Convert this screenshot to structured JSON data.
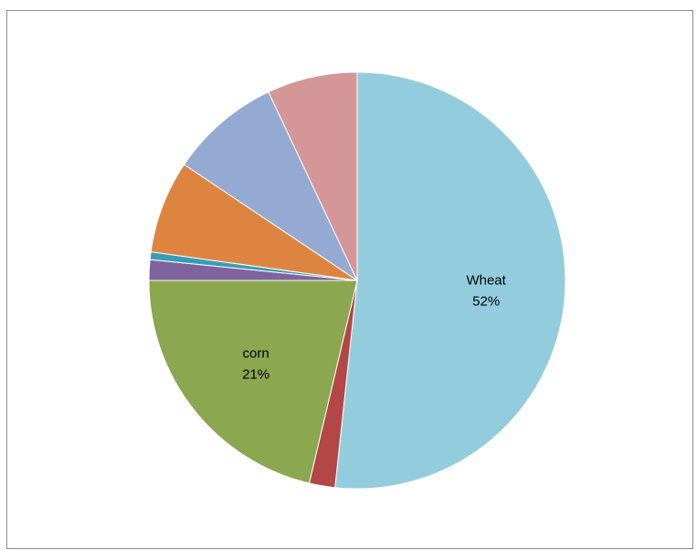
{
  "chart_data": {
    "type": "pie",
    "title": "",
    "start_angle_deg": 0,
    "direction": "clockwise",
    "slices": [
      {
        "label": "Wheat",
        "percent_label": "52%",
        "value": 51.7,
        "color": "#93CDDD",
        "show_label": true
      },
      {
        "label": "",
        "percent_label": "",
        "value": 2.0,
        "color": "#B24745",
        "show_label": false
      },
      {
        "label": "corn",
        "percent_label": "21%",
        "value": 21.3,
        "color": "#8BA74F",
        "show_label": true
      },
      {
        "label": "",
        "percent_label": "",
        "value": 1.6,
        "color": "#7E649E",
        "show_label": false
      },
      {
        "label": "",
        "percent_label": "",
        "value": 0.6,
        "color": "#3A9DB6",
        "show_label": false
      },
      {
        "label": "",
        "percent_label": "",
        "value": 7.2,
        "color": "#DD8540",
        "show_label": false
      },
      {
        "label": "",
        "percent_label": "",
        "value": 8.6,
        "color": "#95AAD3",
        "show_label": false
      },
      {
        "label": "",
        "percent_label": "",
        "value": 7.0,
        "color": "#D49696",
        "show_label": false
      }
    ]
  }
}
